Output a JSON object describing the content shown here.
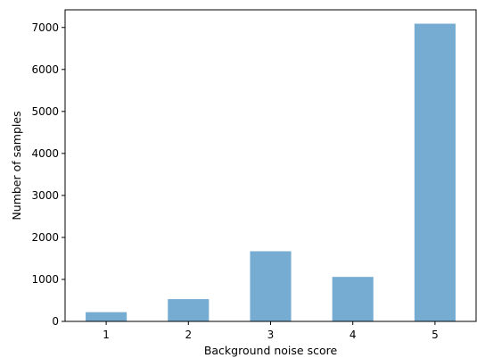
{
  "chart_data": {
    "type": "bar",
    "categories": [
      "1",
      "2",
      "3",
      "4",
      "5"
    ],
    "values": [
      220,
      530,
      1670,
      1060,
      7090
    ],
    "title": "",
    "xlabel": "Background noise score",
    "ylabel": "Number of samples",
    "ylim": [
      0,
      7420
    ],
    "yticks": [
      0,
      1000,
      2000,
      3000,
      4000,
      5000,
      6000,
      7000
    ],
    "bar_color": "#77acd2",
    "grid": false,
    "legend": "none"
  }
}
